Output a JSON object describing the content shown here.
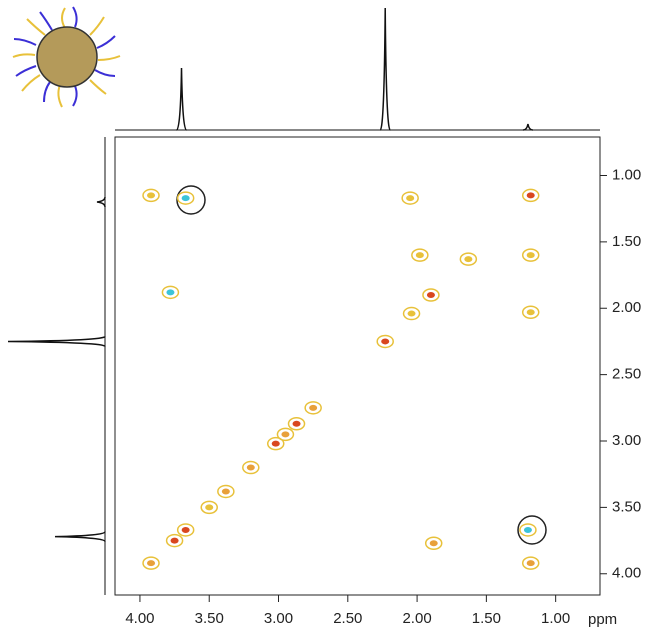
{
  "chart_data": {
    "type": "nmr2d",
    "x_unit_label": "ppm",
    "xlim": [
      4.18,
      0.68
    ],
    "ylim": [
      0.71,
      4.16
    ],
    "xticks": [
      {
        "value": 4.0,
        "label": "4.00"
      },
      {
        "value": 3.5,
        "label": "3.50"
      },
      {
        "value": 3.0,
        "label": "3.00"
      },
      {
        "value": 2.5,
        "label": "2.50"
      },
      {
        "value": 2.0,
        "label": "2.00"
      },
      {
        "value": 1.5,
        "label": "1.50"
      },
      {
        "value": 1.0,
        "label": "1.00"
      }
    ],
    "yticks": [
      {
        "value": 1.0,
        "label": "1.00"
      },
      {
        "value": 1.5,
        "label": "1.50"
      },
      {
        "value": 2.0,
        "label": "2.00"
      },
      {
        "value": 2.5,
        "label": "2.50"
      },
      {
        "value": 3.0,
        "label": "3.00"
      },
      {
        "value": 3.5,
        "label": "3.50"
      },
      {
        "value": 4.0,
        "label": "4.00"
      }
    ],
    "peaks": [
      {
        "x": 3.92,
        "y": 1.15,
        "color": "#e8c13a"
      },
      {
        "x": 3.67,
        "y": 1.17,
        "color": "#3cc4d8"
      },
      {
        "x": 1.18,
        "y": 1.15,
        "color": "#d9471f"
      },
      {
        "x": 2.05,
        "y": 1.17,
        "color": "#e8c13a"
      },
      {
        "x": 1.63,
        "y": 1.63,
        "color": "#e8c13a"
      },
      {
        "x": 1.98,
        "y": 1.6,
        "color": "#e8c13a"
      },
      {
        "x": 1.18,
        "y": 1.6,
        "color": "#e8c13a"
      },
      {
        "x": 3.78,
        "y": 1.88,
        "color": "#3cc4d8"
      },
      {
        "x": 1.9,
        "y": 1.9,
        "color": "#d9471f"
      },
      {
        "x": 2.04,
        "y": 2.04,
        "color": "#e8c13a"
      },
      {
        "x": 1.18,
        "y": 2.03,
        "color": "#e8c13a"
      },
      {
        "x": 2.23,
        "y": 2.25,
        "color": "#d9471f"
      },
      {
        "x": 2.75,
        "y": 2.75,
        "color": "#e8a03a"
      },
      {
        "x": 2.87,
        "y": 2.87,
        "color": "#d9471f"
      },
      {
        "x": 2.95,
        "y": 2.95,
        "color": "#e8a03a"
      },
      {
        "x": 3.02,
        "y": 3.02,
        "color": "#d9471f"
      },
      {
        "x": 3.2,
        "y": 3.2,
        "color": "#e8a03a"
      },
      {
        "x": 3.38,
        "y": 3.38,
        "color": "#e8a03a"
      },
      {
        "x": 3.5,
        "y": 3.5,
        "color": "#e8c13a"
      },
      {
        "x": 3.67,
        "y": 3.67,
        "color": "#d9471f"
      },
      {
        "x": 3.75,
        "y": 3.75,
        "color": "#d9471f"
      },
      {
        "x": 3.92,
        "y": 3.92,
        "color": "#e8a03a"
      },
      {
        "x": 1.88,
        "y": 3.77,
        "color": "#e8a03a"
      },
      {
        "x": 1.2,
        "y": 3.67,
        "color": "#3cc4d8"
      },
      {
        "x": 1.18,
        "y": 3.92,
        "color": "#e8a03a"
      }
    ],
    "top_projection": [
      {
        "x": 3.7,
        "height": 62
      },
      {
        "x": 2.23,
        "height": 122
      },
      {
        "x": 1.2,
        "height": 6
      }
    ],
    "left_projection": [
      {
        "y": 1.2,
        "height": 8
      },
      {
        "y": 2.25,
        "height": 97
      },
      {
        "y": 3.72,
        "height": 50
      }
    ]
  }
}
